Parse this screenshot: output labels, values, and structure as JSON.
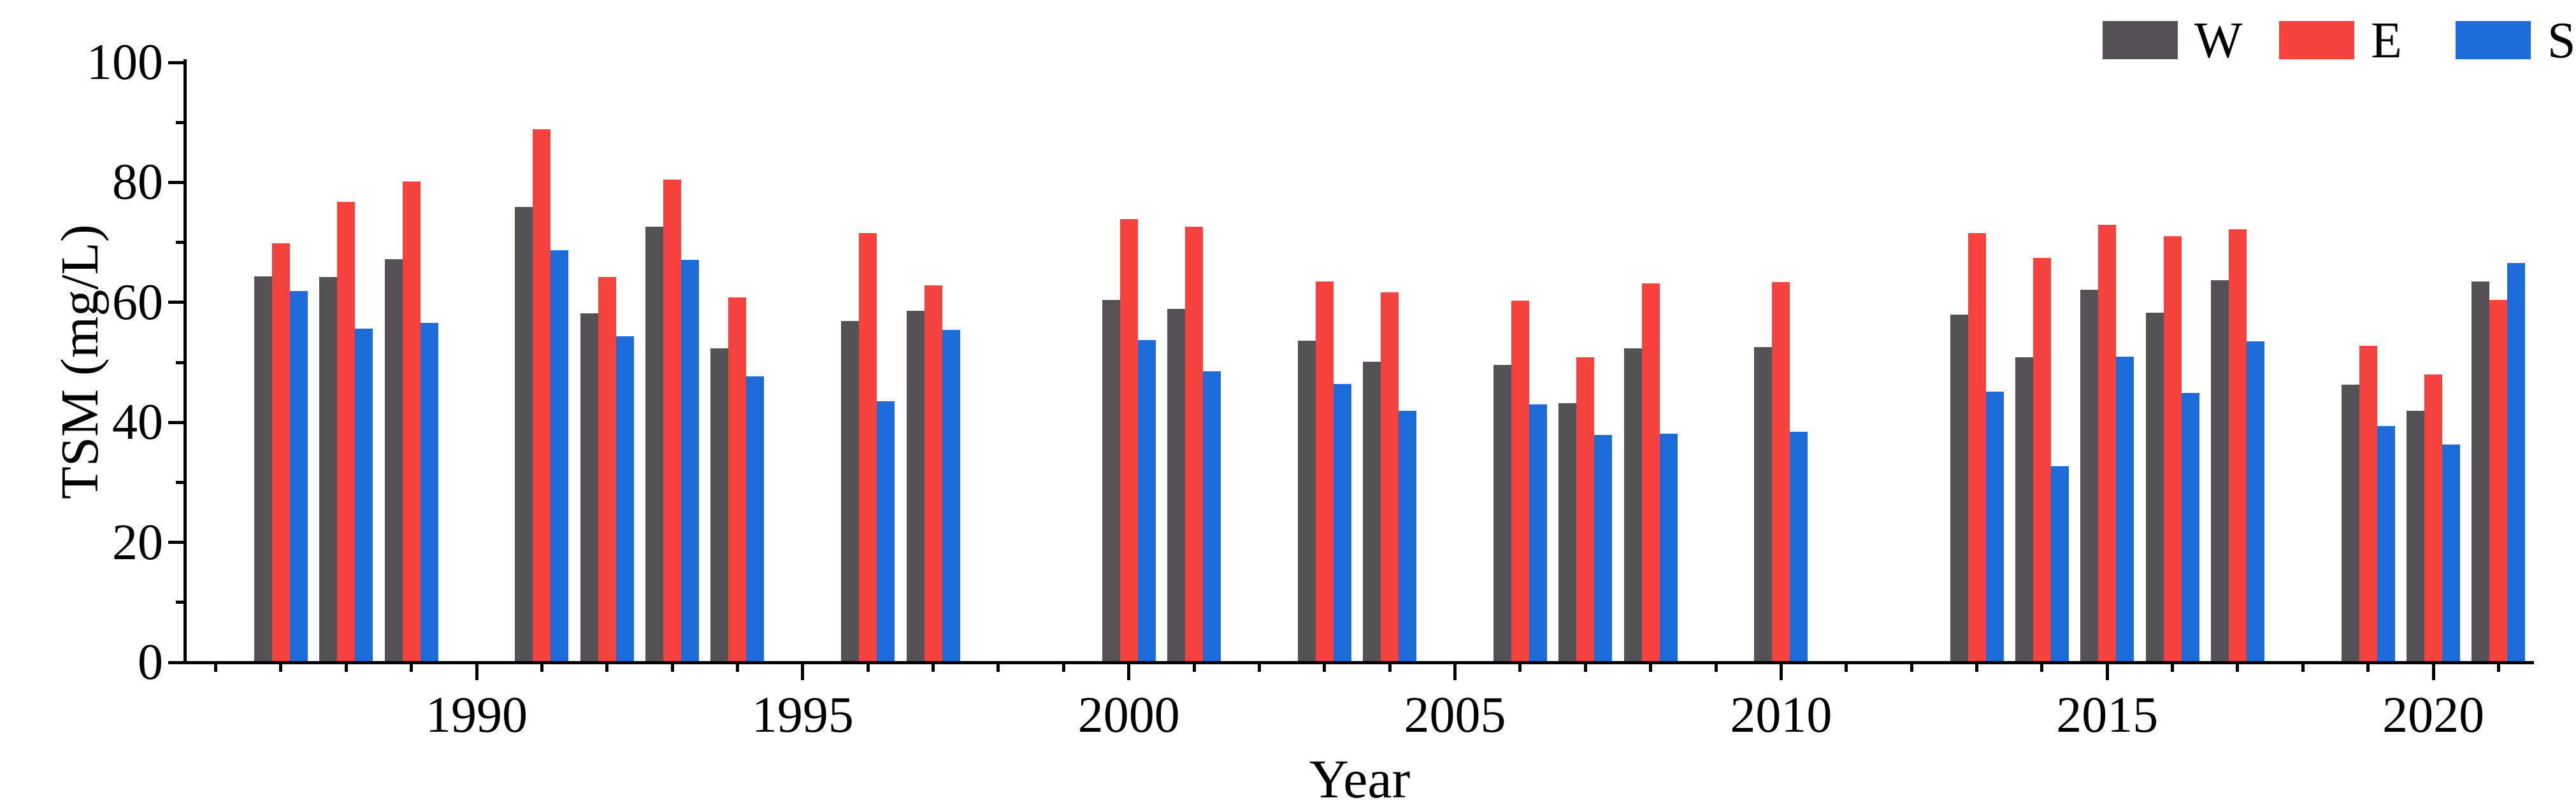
{
  "figure": {
    "background": "#ffffff"
  },
  "chart_data": {
    "type": "bar",
    "title": "",
    "xlabel": "Year",
    "ylabel": "TSM (mg/L)",
    "ylim": [
      0,
      100
    ],
    "y_ticks_major": [
      0,
      20,
      40,
      60,
      80,
      100
    ],
    "y_ticks_minor": [
      10,
      30,
      50,
      70,
      90
    ],
    "x_ticks_major": [
      1990,
      1995,
      2000,
      2005,
      2010,
      2015,
      2020
    ],
    "x_minor_tick_years": [
      1986,
      2021
    ],
    "grid": false,
    "legend": {
      "position": "top-right",
      "entries": [
        {
          "label": "W",
          "color": "#545254"
        },
        {
          "label": "E",
          "color": "#f5423c"
        },
        {
          "label": "S",
          "color": "#1d6bd8"
        }
      ]
    },
    "series_names": [
      "W",
      "E",
      "S"
    ],
    "groups": [
      {
        "year": 1987,
        "W": 64.3,
        "E": 69.9,
        "S": 61.9
      },
      {
        "year": 1988,
        "W": 64.2,
        "E": 76.7,
        "S": 55.6
      },
      {
        "year": 1989,
        "W": 67.2,
        "E": 80.1,
        "S": 56.6
      },
      {
        "year": 1991,
        "W": 75.9,
        "E": 88.9,
        "S": 68.7
      },
      {
        "year": 1992,
        "W": 58.2,
        "E": 64.2,
        "S": 54.4
      },
      {
        "year": 1993,
        "W": 72.6,
        "E": 80.5,
        "S": 67.1
      },
      {
        "year": 1994,
        "W": 52.3,
        "E": 60.8,
        "S": 47.7
      },
      {
        "year": 1996,
        "W": 56.9,
        "E": 71.6,
        "S": 43.5
      },
      {
        "year": 1997,
        "W": 58.6,
        "E": 62.8,
        "S": 55.4
      },
      {
        "year": 2000,
        "W": 60.4,
        "E": 73.9,
        "S": 53.7
      },
      {
        "year": 2001,
        "W": 58.9,
        "E": 72.6,
        "S": 48.5
      },
      {
        "year": 2003,
        "W": 53.6,
        "E": 63.5,
        "S": 46.4
      },
      {
        "year": 2004,
        "W": 50.1,
        "E": 61.7,
        "S": 41.9
      },
      {
        "year": 2006,
        "W": 49.6,
        "E": 60.3,
        "S": 43.0
      },
      {
        "year": 2007,
        "W": 43.2,
        "E": 50.8,
        "S": 37.9
      },
      {
        "year": 2008,
        "W": 52.3,
        "E": 63.2,
        "S": 38.1
      },
      {
        "year": 2010,
        "W": 52.5,
        "E": 63.4,
        "S": 38.4
      },
      {
        "year": 2013,
        "W": 58.0,
        "E": 71.5,
        "S": 45.1
      },
      {
        "year": 2014,
        "W": 50.8,
        "E": 67.4,
        "S": 32.7
      },
      {
        "year": 2015,
        "W": 62.1,
        "E": 72.9,
        "S": 51.0
      },
      {
        "year": 2016,
        "W": 58.3,
        "E": 71.0,
        "S": 44.9
      },
      {
        "year": 2017,
        "W": 63.7,
        "E": 72.2,
        "S": 53.5
      },
      {
        "year": 2019,
        "W": 46.3,
        "E": 52.8,
        "S": 39.4
      },
      {
        "year": 2020,
        "W": 41.9,
        "E": 48.0,
        "S": 36.3
      },
      {
        "year": 2021,
        "W": 63.5,
        "E": 60.4,
        "S": 66.6
      }
    ]
  }
}
